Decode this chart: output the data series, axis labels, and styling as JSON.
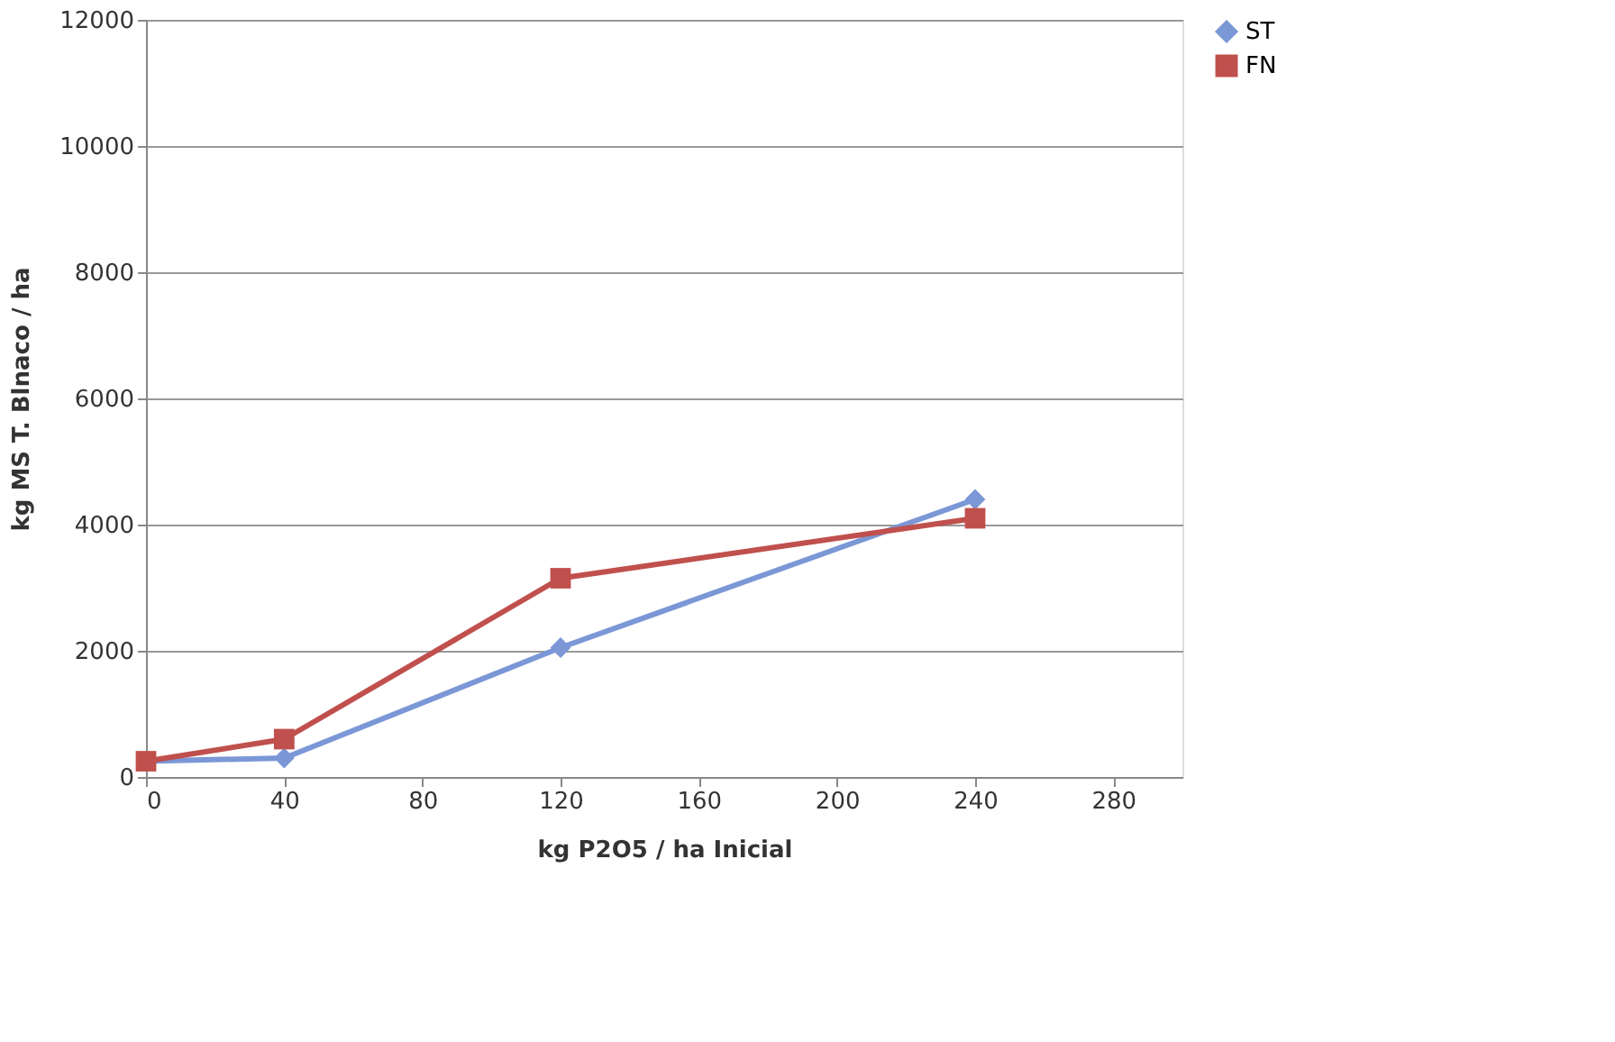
{
  "chart_data": {
    "type": "line",
    "xlabel": "kg P2O5 / ha   Inicial",
    "ylabel": "kg MS  T. Blnaco / ha",
    "x": [
      0,
      40,
      120,
      240
    ],
    "series": [
      {
        "name": "ST",
        "color": "#7b97d6",
        "values": [
          250,
          300,
          2050,
          4400
        ],
        "marker": "diamond"
      },
      {
        "name": "FN",
        "color": "#c0504d",
        "values": [
          250,
          600,
          3150,
          4100
        ],
        "marker": "square"
      }
    ],
    "xlim": [
      0,
      300
    ],
    "xticks": [
      0,
      40,
      80,
      120,
      160,
      200,
      240,
      280
    ],
    "ylim": [
      0,
      12000
    ],
    "yticks": [
      0,
      2000,
      4000,
      6000,
      8000,
      10000,
      12000
    ],
    "grid": "y",
    "legend": "right",
    "line_style": "solid"
  }
}
